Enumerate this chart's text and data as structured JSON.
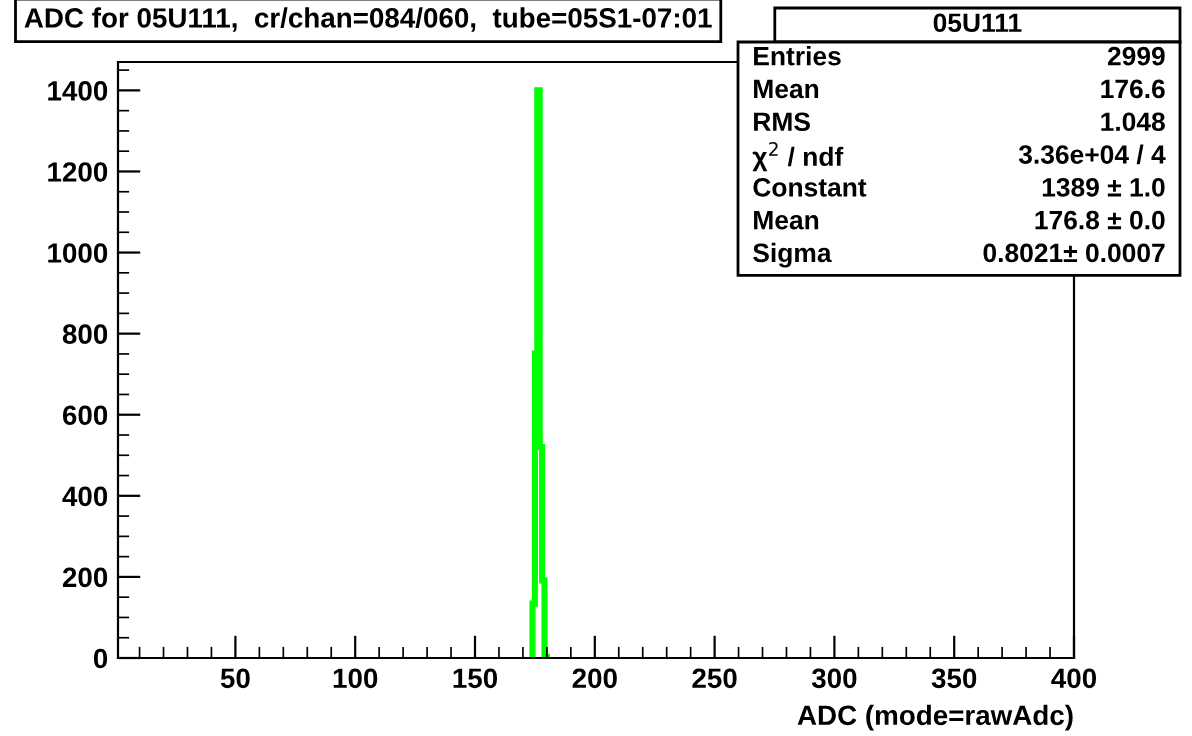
{
  "chart_data": {
    "type": "histogram",
    "title": "ADC for 05U111,  cr/chan=084/060,  tube=05S1-07:01",
    "xlabel": "ADC (mode=rawAdc)",
    "bins": [
      174,
      175,
      176,
      177,
      178,
      179,
      180
    ],
    "values": [
      134,
      751,
      1400,
      520,
      191,
      3
    ],
    "color": "#00ff00",
    "xlim": [
      1,
      400
    ],
    "xticks": [
      50,
      100,
      150,
      200,
      250,
      300,
      350,
      400
    ],
    "ylim": [
      0,
      1470
    ],
    "yticks": [
      0,
      200,
      400,
      600,
      800,
      1000,
      1200,
      1400
    ],
    "grid": false,
    "legend_title": "05U111",
    "annotations": [
      "Entries\t2999",
      "Mean\t176.6",
      "RMS\t1.048",
      "χ$^{2}$ / ndf\t3.36e+04 / 4",
      "Constant\t1389 ± 1.0",
      "Mean\t176.8 ± 0.0",
      "Sigma\t0.8021± 0.0007"
    ]
  }
}
